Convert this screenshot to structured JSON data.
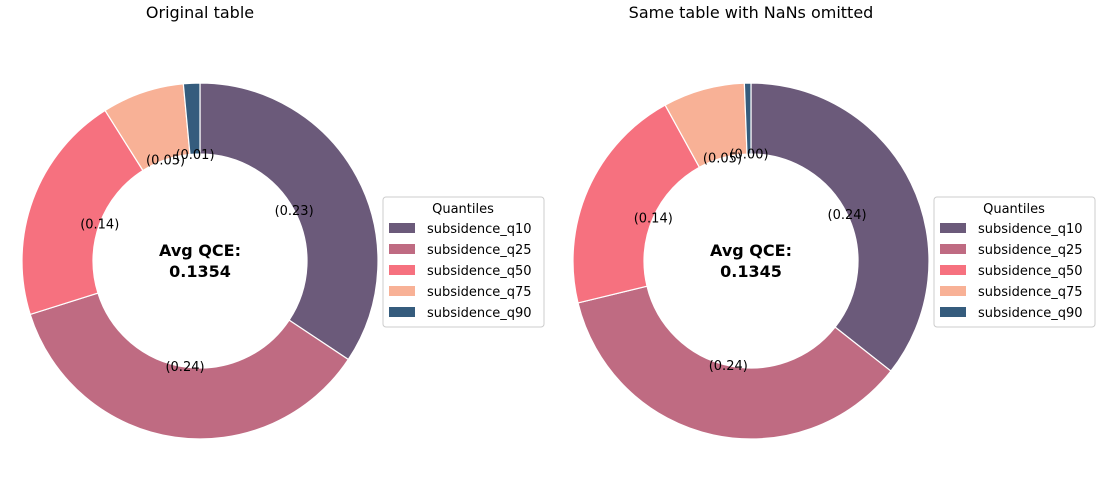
{
  "chart_data": [
    {
      "type": "pie",
      "donut": true,
      "title": "Original table",
      "center_label": "Avg QCE:",
      "center_value": "0.1354",
      "legend_title": "Quantiles",
      "legend_position": "right",
      "categories": [
        "subsidence_q10",
        "subsidence_q25",
        "subsidence_q50",
        "subsidence_q75",
        "subsidence_q90"
      ],
      "values": [
        0.23,
        0.24,
        0.14,
        0.05,
        0.01
      ],
      "value_labels": [
        "(0.23)",
        "(0.24)",
        "(0.14)",
        "(0.05)",
        "(0.01)"
      ],
      "colors": [
        "#6b5a7a",
        "#bf6b82",
        "#f6717f",
        "#f8b196",
        "#355c7d"
      ]
    },
    {
      "type": "pie",
      "donut": true,
      "title": "Same table with NaNs omitted",
      "center_label": "Avg QCE:",
      "center_value": "0.1345",
      "legend_title": "Quantiles",
      "legend_position": "right",
      "categories": [
        "subsidence_q10",
        "subsidence_q25",
        "subsidence_q50",
        "subsidence_q75",
        "subsidence_q90"
      ],
      "values": [
        0.24,
        0.24,
        0.14,
        0.05,
        0.004
      ],
      "value_labels": [
        "(0.24)",
        "(0.24)",
        "(0.14)",
        "(0.05)",
        "(0.00)"
      ],
      "colors": [
        "#6b5a7a",
        "#bf6b82",
        "#f6717f",
        "#f8b196",
        "#355c7d"
      ]
    }
  ]
}
